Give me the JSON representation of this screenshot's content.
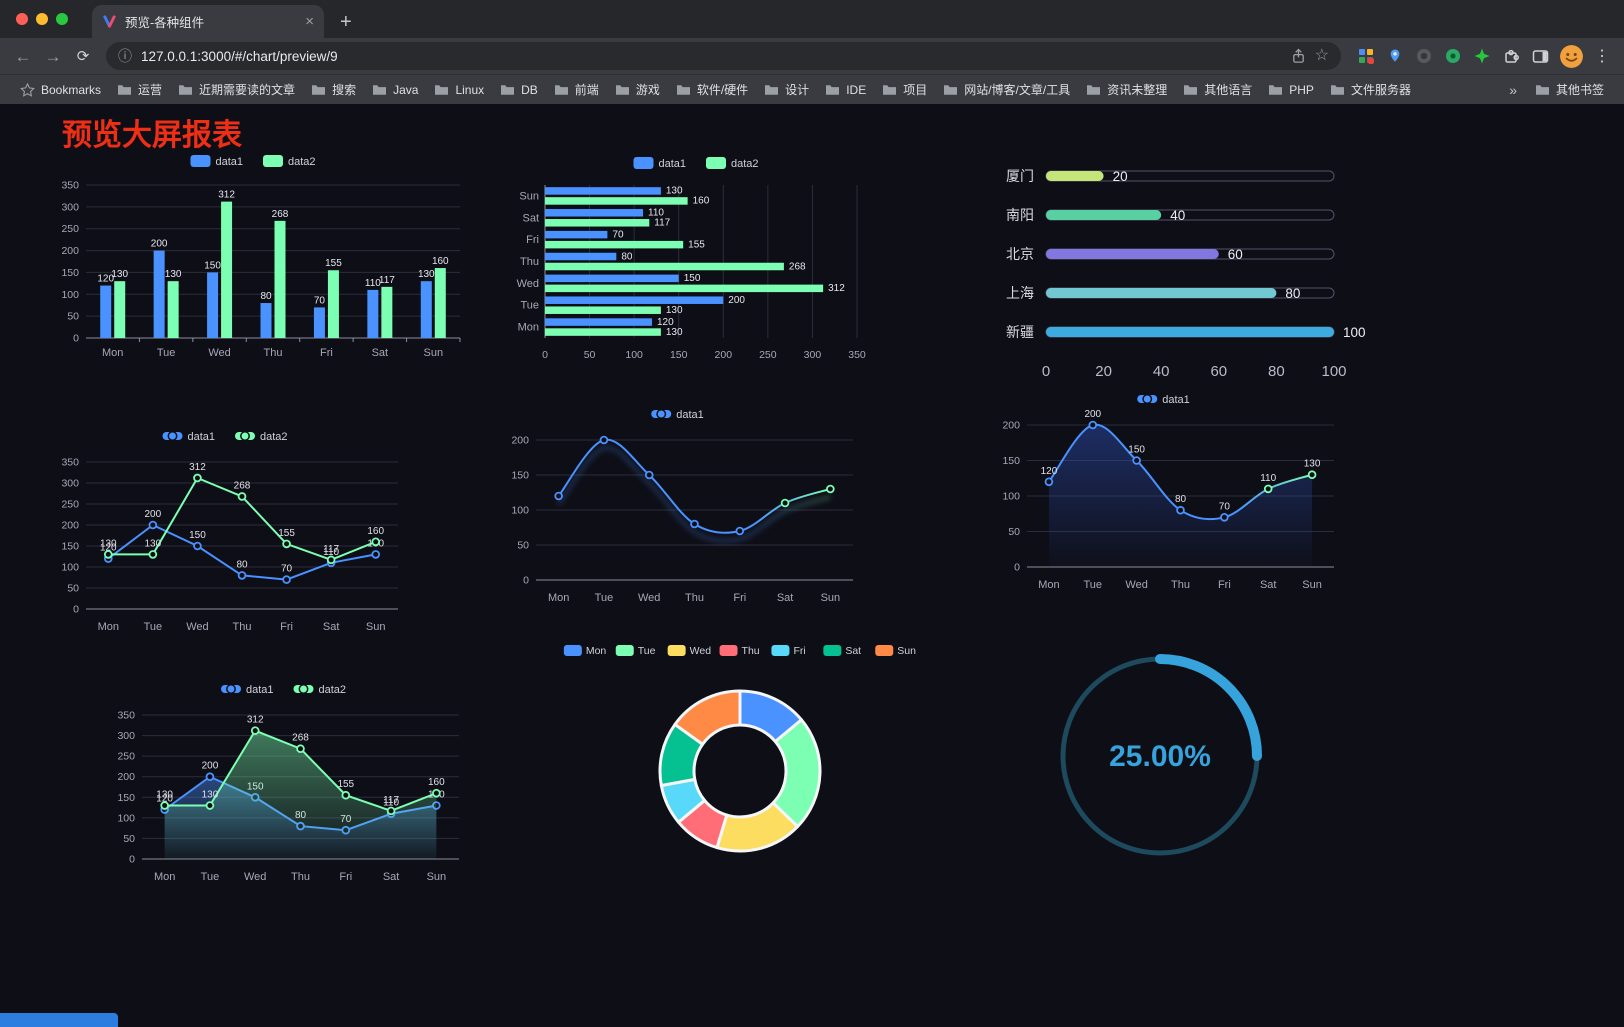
{
  "browser": {
    "tab_title": "预览-各种组件",
    "url": "127.0.0.1:3000/#/chart/preview/9",
    "bookmarks": [
      "Bookmarks",
      "运营",
      "近期需要读的文章",
      "搜索",
      "Java",
      "Linux",
      "DB",
      "前端",
      "游戏",
      "软件/硬件",
      "设计",
      "IDE",
      "项目",
      "网站/博客/文章/工具",
      "资讯未整理",
      "其他语言",
      "PHP",
      "文件服务器"
    ],
    "other_bookmarks": "其他书签",
    "icons": {
      "close_tab": "×",
      "new_tab": "+",
      "back": "←",
      "forward": "→",
      "reload": "⟳",
      "info": "ⓘ",
      "star": "☆",
      "menu": "⋮",
      "overflow": "»"
    }
  },
  "page": {
    "title": "预览大屏报表",
    "title_color": "#ee2f15",
    "background": "#0e0e16"
  },
  "chart_data": [
    {
      "id": "grouped-bar",
      "type": "bar",
      "categories": [
        "Mon",
        "Tue",
        "Wed",
        "Thu",
        "Fri",
        "Sat",
        "Sun"
      ],
      "series": [
        {
          "name": "data1",
          "color": "#4992ff",
          "values": [
            120,
            200,
            150,
            80,
            70,
            110,
            130
          ]
        },
        {
          "name": "data2",
          "color": "#7cffb2",
          "values": [
            130,
            130,
            312,
            268,
            155,
            117,
            160
          ]
        }
      ],
      "ylim": [
        0,
        350
      ],
      "ystep": 50,
      "legend_position": "top",
      "grid": true,
      "show_labels": true
    },
    {
      "id": "horizontal-bar",
      "type": "bar",
      "orientation": "horizontal",
      "categories": [
        "Mon",
        "Tue",
        "Wed",
        "Thu",
        "Fri",
        "Sat",
        "Sun"
      ],
      "series": [
        {
          "name": "data1",
          "color": "#4992ff",
          "values": [
            120,
            200,
            150,
            80,
            70,
            110,
            130
          ]
        },
        {
          "name": "data2",
          "color": "#7cffb2",
          "values": [
            130,
            130,
            312,
            268,
            155,
            117,
            160
          ]
        }
      ],
      "xlim": [
        0,
        350
      ],
      "xstep": 50,
      "legend_position": "top",
      "show_labels": true
    },
    {
      "id": "city-progress",
      "type": "bar",
      "orientation": "horizontal-progress",
      "items": [
        {
          "label": "厦门",
          "value": 20,
          "color": "#c6e579"
        },
        {
          "label": "南阳",
          "value": 40,
          "color": "#58d0a2"
        },
        {
          "label": "北京",
          "value": 60,
          "color": "#8277e0"
        },
        {
          "label": "上海",
          "value": 80,
          "color": "#72c8d2"
        },
        {
          "label": "新疆",
          "value": 100,
          "color": "#3cabdf"
        }
      ],
      "xlim": [
        0,
        100
      ],
      "xticks": [
        0,
        20,
        40,
        60,
        80,
        100
      ]
    },
    {
      "id": "line-two-series",
      "type": "line",
      "categories": [
        "Mon",
        "Tue",
        "Wed",
        "Thu",
        "Fri",
        "Sat",
        "Sun"
      ],
      "series": [
        {
          "name": "data1",
          "color": "#4992ff",
          "values": [
            120,
            200,
            150,
            80,
            70,
            110,
            130
          ]
        },
        {
          "name": "data2",
          "color": "#7cffb2",
          "values": [
            130,
            130,
            312,
            268,
            155,
            117,
            160
          ]
        }
      ],
      "ylim": [
        0,
        350
      ],
      "ystep": 50,
      "legend_position": "top",
      "show_labels": true
    },
    {
      "id": "line-gradient-shadow",
      "type": "line",
      "smooth": true,
      "shadow": true,
      "categories": [
        "Mon",
        "Tue",
        "Wed",
        "Thu",
        "Fri",
        "Sat",
        "Sun"
      ],
      "series": [
        {
          "name": "data1",
          "color": "#4992ff",
          "color_end": "#7cffb2",
          "values": [
            120,
            200,
            150,
            80,
            70,
            110,
            130
          ]
        }
      ],
      "ylim": [
        0,
        200
      ],
      "ystep": 50,
      "legend_position": "top",
      "show_labels": false
    },
    {
      "id": "area-single",
      "type": "area",
      "smooth": true,
      "categories": [
        "Mon",
        "Tue",
        "Wed",
        "Thu",
        "Fri",
        "Sat",
        "Sun"
      ],
      "series": [
        {
          "name": "data1",
          "color": "#4992ff",
          "color_end": "#7cffb2",
          "area_color": "#2f55c2",
          "values": [
            120,
            200,
            150,
            80,
            70,
            110,
            130
          ]
        }
      ],
      "ylim": [
        0,
        200
      ],
      "ystep": 50,
      "legend_position": "top",
      "show_labels": true
    },
    {
      "id": "area-two-series",
      "type": "area",
      "categories": [
        "Mon",
        "Tue",
        "Wed",
        "Thu",
        "Fri",
        "Sat",
        "Sun"
      ],
      "series": [
        {
          "name": "data1",
          "color": "#4992ff",
          "area_color": "#4992ff",
          "values": [
            120,
            200,
            150,
            80,
            70,
            110,
            130
          ]
        },
        {
          "name": "data2",
          "color": "#7cffb2",
          "area_color": "#7cffb2",
          "values": [
            130,
            130,
            312,
            268,
            155,
            117,
            160
          ]
        }
      ],
      "ylim": [
        0,
        350
      ],
      "ystep": 50,
      "legend_position": "top",
      "show_labels": true
    },
    {
      "id": "weekday-donut",
      "type": "pie",
      "donut": true,
      "categories": [
        "Mon",
        "Tue",
        "Wed",
        "Thu",
        "Fri",
        "Sat",
        "Sun"
      ],
      "values": [
        120,
        200,
        150,
        80,
        70,
        110,
        130
      ],
      "colors": [
        "#4992ff",
        "#7cffb2",
        "#fddd60",
        "#ff6e76",
        "#58d9f9",
        "#05c091",
        "#ff8a45"
      ],
      "legend_position": "top"
    },
    {
      "id": "progress-gauge",
      "type": "gauge",
      "value": 25,
      "label": "25.00%",
      "color": "#36a3dc",
      "track_color": "#1d4a5c"
    }
  ]
}
